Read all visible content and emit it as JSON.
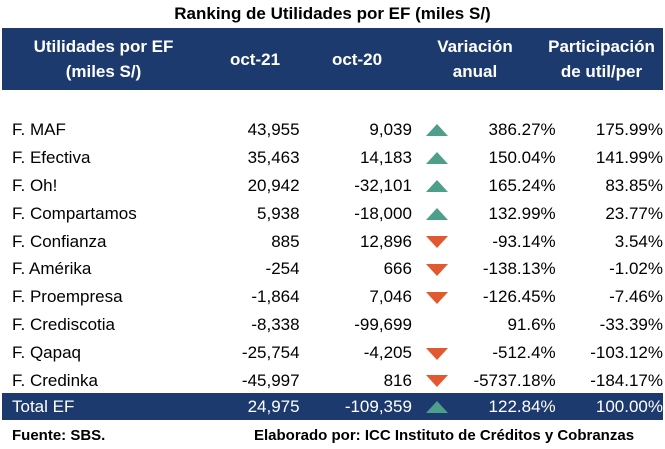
{
  "title": "Ranking de Utilidades por EF (miles S/)",
  "header": {
    "col1_line1": "Utilidades por EF",
    "col1_line2": "(miles S/)",
    "col2": "oct-21",
    "col3": "oct-20",
    "col4_line1": "Variación",
    "col4_line2": "anual",
    "col5_line1": "Participación",
    "col5_line2": "de util/per"
  },
  "colors": {
    "header_bg": "#1d3a6e",
    "up": "#4e9e8c",
    "down": "#e2582f"
  },
  "rows": [
    {
      "name": "F. MAF",
      "oct21": "43,955",
      "oct20": "9,039",
      "trend": "up",
      "variation": "386.27%",
      "share": "175.99%"
    },
    {
      "name": "F. Efectiva",
      "oct21": "35,463",
      "oct20": "14,183",
      "trend": "up",
      "variation": "150.04%",
      "share": "141.99%"
    },
    {
      "name": "F. Oh!",
      "oct21": "20,942",
      "oct20": "-32,101",
      "trend": "up",
      "variation": "165.24%",
      "share": "83.85%"
    },
    {
      "name": "F. Compartamos",
      "oct21": "5,938",
      "oct20": "-18,000",
      "trend": "up",
      "variation": "132.99%",
      "share": "23.77%"
    },
    {
      "name": "F. Confianza",
      "oct21": "885",
      "oct20": "12,896",
      "trend": "down",
      "variation": "-93.14%",
      "share": "3.54%"
    },
    {
      "name": "F. Amérika",
      "oct21": "-254",
      "oct20": "666",
      "trend": "down",
      "variation": "-138.13%",
      "share": "-1.02%"
    },
    {
      "name": "F. Proempresa",
      "oct21": "-1,864",
      "oct20": "7,046",
      "trend": "down",
      "variation": "-126.45%",
      "share": "-7.46%"
    },
    {
      "name": "F. Crediscotia",
      "oct21": "-8,338",
      "oct20": "-99,699",
      "trend": "none",
      "variation": "91.6%",
      "share": "-33.39%"
    },
    {
      "name": "F. Qapaq",
      "oct21": "-25,754",
      "oct20": "-4,205",
      "trend": "down",
      "variation": "-512.4%",
      "share": "-103.12%"
    },
    {
      "name": "F. Credinka",
      "oct21": "-45,997",
      "oct20": "816",
      "trend": "down",
      "variation": "-5737.18%",
      "share": "-184.17%"
    }
  ],
  "total": {
    "name": "Total EF",
    "oct21": "24,975",
    "oct20": "-109,359",
    "trend": "up",
    "variation": "122.84%",
    "share": "100.00%"
  },
  "footer": {
    "source": "Fuente: SBS.",
    "credit": "Elaborado por: ICC Instituto de Créditos y Cobranzas"
  }
}
